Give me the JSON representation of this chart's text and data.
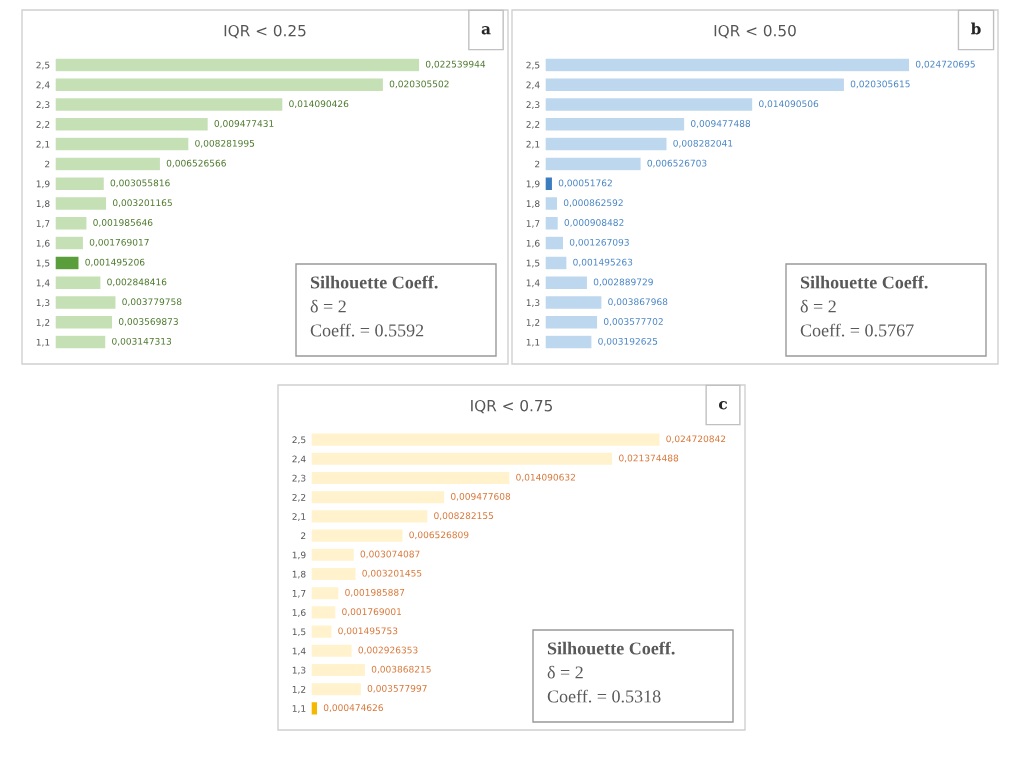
{
  "chart_data": [
    {
      "type": "bar",
      "orientation": "horizontal",
      "title": "IQR < 0.25",
      "tick_labels": "y",
      "grid": false,
      "legend": false,
      "categories": [
        "2,5",
        "2,4",
        "2,3",
        "2,2",
        "2,1",
        "2",
        "1,9",
        "1,8",
        "1,7",
        "1,6",
        "1,5",
        "1,4",
        "1,3",
        "1,2",
        "1,1"
      ],
      "values": [
        0.022539944,
        0.020305502,
        0.014090426,
        0.009477431,
        0.008281995,
        0.006526566,
        0.003055816,
        0.003201165,
        0.001985646,
        0.001769017,
        0.001495206,
        0.002848416,
        0.003779758,
        0.003569873,
        0.003147313
      ],
      "value_labels": [
        "0,022539944",
        "0,020305502",
        "0,014090426",
        "0,009477431",
        "0,008281995",
        "0,006526566",
        "0,003055816",
        "0,003201165",
        "0,001985646",
        "0,001769017",
        "0,001495206",
        "0,002848416",
        "0,003779758",
        "0,003569873",
        "0,003147313"
      ],
      "colors": [
        "#c5e0b4",
        "#c5e0b4",
        "#c5e0b4",
        "#c5e0b4",
        "#c5e0b4",
        "#c5e0b4",
        "#c5e0b4",
        "#c5e0b4",
        "#c5e0b4",
        "#c5e0b4",
        "#5a9e3c",
        "#c5e0b4",
        "#c5e0b4",
        "#c5e0b4",
        "#c5e0b4"
      ],
      "annotations": [
        "a",
        "Silhouette Coeff.",
        "δ = 2",
        "Coeff. = 0.5592"
      ]
    },
    {
      "type": "bar",
      "orientation": "horizontal",
      "title": "IQR < 0.50",
      "tick_labels": "y",
      "grid": false,
      "legend": false,
      "categories": [
        "2,5",
        "2,4",
        "2,3",
        "2,2",
        "2,1",
        "2",
        "1,9",
        "1,8",
        "1,7",
        "1,6",
        "1,5",
        "1,4",
        "1,3",
        "1,2",
        "1,1"
      ],
      "values": [
        0.024720695,
        0.020305615,
        0.014090506,
        0.009477488,
        0.008282041,
        0.006526703,
        0.00051762,
        0.000862592,
        0.000908482,
        0.001267093,
        0.001495263,
        0.002889729,
        0.003867968,
        0.003577702,
        0.003192625
      ],
      "value_labels": [
        "0,024720695",
        "0,020305615",
        "0,014090506",
        "0,009477488",
        "0,008282041",
        "0,006526703",
        "0,00051762",
        "0,000862592",
        "0,000908482",
        "0,001267093",
        "0,001495263",
        "0,002889729",
        "0,003867968",
        "0,003577702",
        "0,003192625"
      ],
      "colors": [
        "#bdd7ee",
        "#bdd7ee",
        "#bdd7ee",
        "#bdd7ee",
        "#bdd7ee",
        "#bdd7ee",
        "#3b7dbf",
        "#bdd7ee",
        "#bdd7ee",
        "#bdd7ee",
        "#bdd7ee",
        "#bdd7ee",
        "#bdd7ee",
        "#bdd7ee",
        "#bdd7ee"
      ],
      "annotations": [
        "b",
        "Silhouette Coeff.",
        "δ = 2",
        "Coeff. = 0.5767"
      ]
    },
    {
      "type": "bar",
      "orientation": "horizontal",
      "title": "IQR < 0.75",
      "tick_labels": "y",
      "grid": false,
      "legend": false,
      "categories": [
        "2,5",
        "2,4",
        "2,3",
        "2,2",
        "2,1",
        "2",
        "1,9",
        "1,8",
        "1,7",
        "1,6",
        "1,5",
        "1,4",
        "1,3",
        "1,2",
        "1,1"
      ],
      "values": [
        0.024720842,
        0.021374488,
        0.014090632,
        0.009477608,
        0.008282155,
        0.006526809,
        0.003074087,
        0.003201455,
        0.001985887,
        0.001769001,
        0.001495753,
        0.002926353,
        0.003868215,
        0.003577997,
        0.000474626
      ],
      "value_labels": [
        "0,024720842",
        "0,021374488",
        "0,014090632",
        "0,009477608",
        "0,008282155",
        "0,006526809",
        "0,003074087",
        "0,003201455",
        "0,001985887",
        "0,001769001",
        "0,001495753",
        "0,002926353",
        "0,003868215",
        "0,003577997",
        "0,000474626"
      ],
      "colors": [
        "#fff2cc",
        "#fff2cc",
        "#fff2cc",
        "#fff2cc",
        "#fff2cc",
        "#fff2cc",
        "#fff2cc",
        "#fff2cc",
        "#fff2cc",
        "#fff2cc",
        "#fff2cc",
        "#fff2cc",
        "#fff2cc",
        "#fff2cc",
        "#f5b800"
      ],
      "annotations": [
        "c",
        "Silhouette Coeff.",
        "δ = 2",
        "Coeff. = 0.5318"
      ]
    }
  ]
}
